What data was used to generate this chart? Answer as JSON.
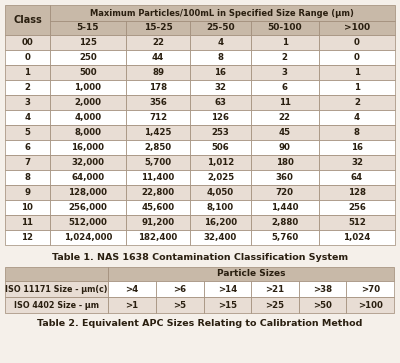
{
  "table1_title": "Table 1. NAS 1638 Contamination Classification System",
  "table2_title": "Table 2. Equivalent APC Sizes Relating to Calibration Method",
  "header_main": "Maximum Particles/100mL in Specified Size Range (µm)",
  "col_headers": [
    "Class",
    "5-15",
    "15-25",
    "25-50",
    "50-100",
    ">100"
  ],
  "table1_rows": [
    [
      "00",
      "125",
      "22",
      "4",
      "1",
      "0"
    ],
    [
      "0",
      "250",
      "44",
      "8",
      "2",
      "0"
    ],
    [
      "1",
      "500",
      "89",
      "16",
      "3",
      "1"
    ],
    [
      "2",
      "1,000",
      "178",
      "32",
      "6",
      "1"
    ],
    [
      "3",
      "2,000",
      "356",
      "63",
      "11",
      "2"
    ],
    [
      "4",
      "4,000",
      "712",
      "126",
      "22",
      "4"
    ],
    [
      "5",
      "8,000",
      "1,425",
      "253",
      "45",
      "8"
    ],
    [
      "6",
      "16,000",
      "2,850",
      "506",
      "90",
      "16"
    ],
    [
      "7",
      "32,000",
      "5,700",
      "1,012",
      "180",
      "32"
    ],
    [
      "8",
      "64,000",
      "11,400",
      "2,025",
      "360",
      "64"
    ],
    [
      "9",
      "128,000",
      "22,800",
      "4,050",
      "720",
      "128"
    ],
    [
      "10",
      "256,000",
      "45,600",
      "8,100",
      "1,440",
      "256"
    ],
    [
      "11",
      "512,000",
      "91,200",
      "16,200",
      "2,880",
      "512"
    ],
    [
      "12",
      "1,024,000",
      "182,400",
      "32,400",
      "5,760",
      "1,024"
    ]
  ],
  "table2_row_headers": [
    "ISO 11171 Size - µm(c)",
    "ISO 4402 Size - µm"
  ],
  "table2_row1": [
    ">4",
    ">6",
    ">14",
    ">21",
    ">38",
    ">70"
  ],
  "table2_row2": [
    ">1",
    ">5",
    ">15",
    ">25",
    ">50",
    ">100"
  ],
  "color_header": "#c8b9a8",
  "color_row_light": "#ffffff",
  "color_row_shaded": "#e8ddd4",
  "color_border": "#9e8a76",
  "color_text": "#2a1f10",
  "color_bg": "#f5f0ea"
}
